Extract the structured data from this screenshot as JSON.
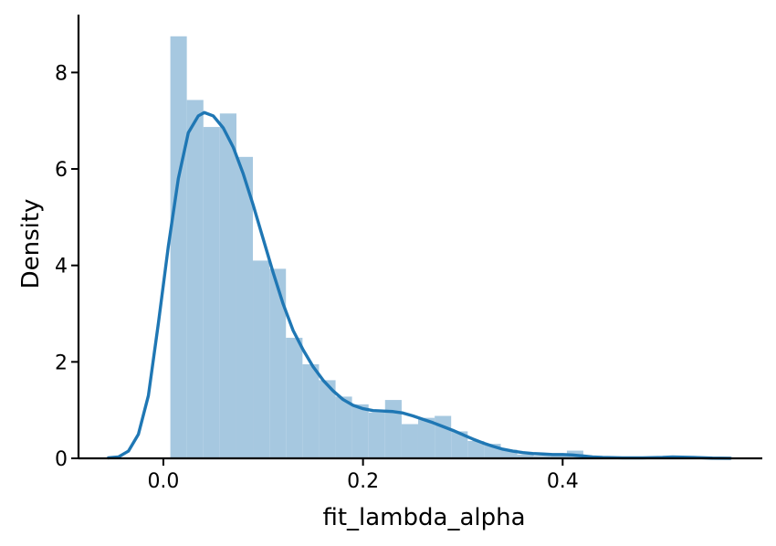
{
  "chart_data": {
    "type": "bar",
    "title": "",
    "xlabel": "fit_lambda_alpha",
    "ylabel": "Density",
    "xlim": [
      -0.085,
      0.6
    ],
    "ylim": [
      0,
      9.2
    ],
    "grid": false,
    "legend": "none",
    "x_ticks": [
      {
        "value": 0.0,
        "label": "0.0"
      },
      {
        "value": 0.2,
        "label": "0.2"
      },
      {
        "value": 0.4,
        "label": "0.4"
      }
    ],
    "y_ticks": [
      {
        "value": 0,
        "label": "0"
      },
      {
        "value": 2,
        "label": "2"
      },
      {
        "value": 4,
        "label": "4"
      },
      {
        "value": 6,
        "label": "6"
      },
      {
        "value": 8,
        "label": "8"
      }
    ],
    "histogram": {
      "color": "#a6c8e0",
      "bins": [
        {
          "x0": 0.007,
          "x1": 0.0235,
          "density": 8.75
        },
        {
          "x0": 0.0235,
          "x1": 0.0401,
          "density": 7.43
        },
        {
          "x0": 0.0401,
          "x1": 0.0566,
          "density": 6.87
        },
        {
          "x0": 0.0566,
          "x1": 0.0732,
          "density": 7.15
        },
        {
          "x0": 0.0732,
          "x1": 0.0897,
          "density": 6.25
        },
        {
          "x0": 0.0897,
          "x1": 0.1063,
          "density": 4.1
        },
        {
          "x0": 0.1063,
          "x1": 0.1228,
          "density": 3.93
        },
        {
          "x0": 0.1228,
          "x1": 0.1394,
          "density": 2.5
        },
        {
          "x0": 0.1394,
          "x1": 0.1559,
          "density": 1.95
        },
        {
          "x0": 0.1559,
          "x1": 0.1725,
          "density": 1.62
        },
        {
          "x0": 0.1725,
          "x1": 0.189,
          "density": 1.28
        },
        {
          "x0": 0.189,
          "x1": 0.2056,
          "density": 1.12
        },
        {
          "x0": 0.2056,
          "x1": 0.2221,
          "density": 0.95
        },
        {
          "x0": 0.2221,
          "x1": 0.2387,
          "density": 1.21
        },
        {
          "x0": 0.2387,
          "x1": 0.2552,
          "density": 0.71
        },
        {
          "x0": 0.2552,
          "x1": 0.2718,
          "density": 0.84
        },
        {
          "x0": 0.2718,
          "x1": 0.2883,
          "density": 0.88
        },
        {
          "x0": 0.2883,
          "x1": 0.3049,
          "density": 0.56
        },
        {
          "x0": 0.3049,
          "x1": 0.3214,
          "density": 0.36
        },
        {
          "x0": 0.3214,
          "x1": 0.338,
          "density": 0.3
        },
        {
          "x0": 0.338,
          "x1": 0.3545,
          "density": 0.18
        },
        {
          "x0": 0.3545,
          "x1": 0.3711,
          "density": 0.08
        },
        {
          "x0": 0.3711,
          "x1": 0.3876,
          "density": 0.05
        },
        {
          "x0": 0.3876,
          "x1": 0.4042,
          "density": 0.05
        },
        {
          "x0": 0.4042,
          "x1": 0.4207,
          "density": 0.16
        }
      ]
    },
    "kde": {
      "color": "#1f77b4",
      "points": [
        [
          -0.055,
          0.01
        ],
        [
          -0.045,
          0.03
        ],
        [
          -0.035,
          0.15
        ],
        [
          -0.025,
          0.5
        ],
        [
          -0.015,
          1.3
        ],
        [
          -0.005,
          2.8
        ],
        [
          0.005,
          4.4
        ],
        [
          0.015,
          5.8
        ],
        [
          0.025,
          6.75
        ],
        [
          0.035,
          7.1
        ],
        [
          0.041,
          7.17
        ],
        [
          0.05,
          7.1
        ],
        [
          0.06,
          6.85
        ],
        [
          0.07,
          6.45
        ],
        [
          0.08,
          5.9
        ],
        [
          0.09,
          5.25
        ],
        [
          0.1,
          4.55
        ],
        [
          0.11,
          3.85
        ],
        [
          0.12,
          3.2
        ],
        [
          0.13,
          2.65
        ],
        [
          0.14,
          2.25
        ],
        [
          0.15,
          1.9
        ],
        [
          0.16,
          1.62
        ],
        [
          0.17,
          1.4
        ],
        [
          0.18,
          1.22
        ],
        [
          0.19,
          1.1
        ],
        [
          0.2,
          1.03
        ],
        [
          0.21,
          0.99
        ],
        [
          0.22,
          0.98
        ],
        [
          0.23,
          0.97
        ],
        [
          0.24,
          0.94
        ],
        [
          0.25,
          0.88
        ],
        [
          0.26,
          0.81
        ],
        [
          0.27,
          0.74
        ],
        [
          0.28,
          0.66
        ],
        [
          0.29,
          0.58
        ],
        [
          0.3,
          0.49
        ],
        [
          0.31,
          0.4
        ],
        [
          0.32,
          0.32
        ],
        [
          0.33,
          0.25
        ],
        [
          0.34,
          0.19
        ],
        [
          0.35,
          0.15
        ],
        [
          0.36,
          0.12
        ],
        [
          0.37,
          0.1
        ],
        [
          0.38,
          0.09
        ],
        [
          0.39,
          0.08
        ],
        [
          0.4,
          0.08
        ],
        [
          0.41,
          0.07
        ],
        [
          0.42,
          0.05
        ],
        [
          0.43,
          0.03
        ],
        [
          0.44,
          0.02
        ],
        [
          0.46,
          0.01
        ],
        [
          0.48,
          0.01
        ],
        [
          0.5,
          0.02
        ],
        [
          0.51,
          0.03
        ],
        [
          0.53,
          0.02
        ],
        [
          0.55,
          0.005
        ],
        [
          0.568,
          0.002
        ]
      ]
    }
  }
}
